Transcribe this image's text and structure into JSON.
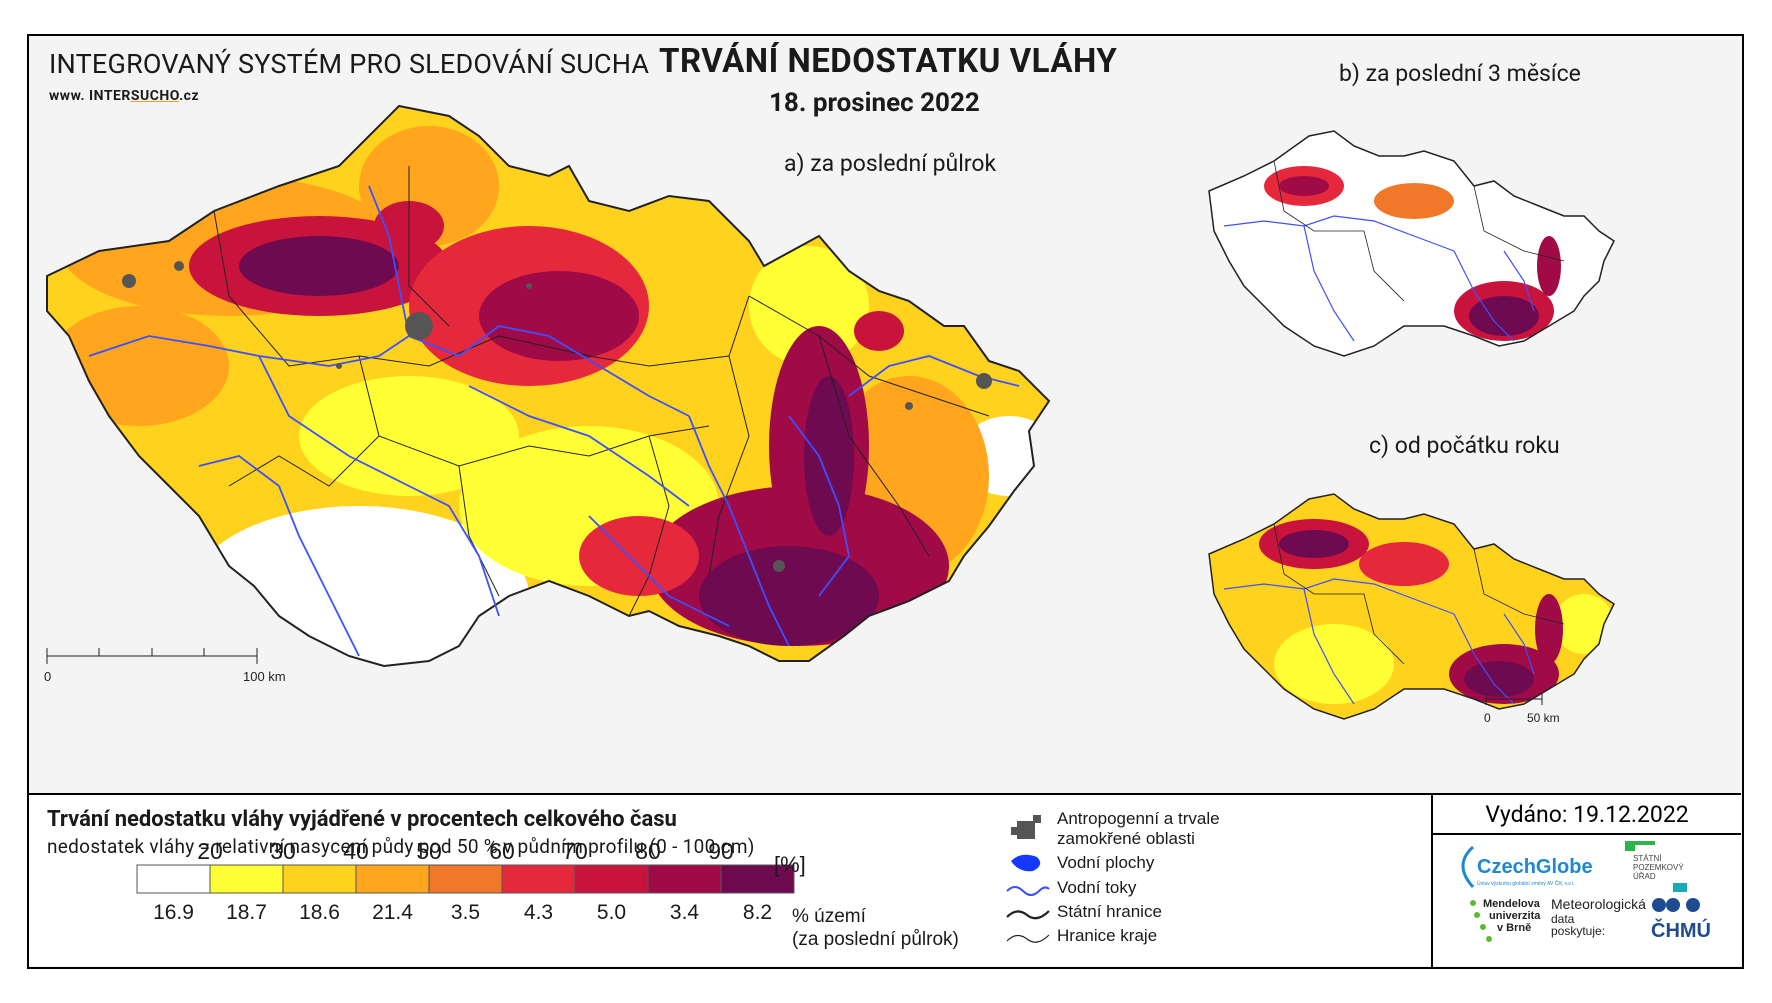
{
  "header": {
    "system_title": "INTEGROVANÝ SYSTÉM PRO SLEDOVÁNÍ SUCHA",
    "website_prefix": "www. ",
    "website_a": "INTER",
    "website_b": "SUCHO",
    "website_c": ".cz",
    "title": "TRVÁNÍ NEDOSTATKU VLÁHY",
    "date": "18. prosinec 2022"
  },
  "maps": {
    "a_label": "a) za poslední půlrok",
    "b_label": "b) za poslední 3 měsíce",
    "c_label": "c) od počátku roku",
    "scale_a": {
      "start": "0",
      "end": "100 km"
    },
    "scale_bc": {
      "start": "0",
      "end": "50 km"
    }
  },
  "legend": {
    "title": "Trvání nedostatku vláhy vyjádřené v procentech celkového času",
    "subtitle": "nedostatek vláhy = relativní nasycení půdy pod 50 % v půdním profilu (0 - 100 cm)",
    "unit": "[%]",
    "thresholds": [
      "20",
      "30",
      "40",
      "50",
      "60",
      "70",
      "80",
      "90"
    ],
    "colors": [
      "#ffffff",
      "#ffff33",
      "#ffd21e",
      "#ffa51e",
      "#f07828",
      "#e6283c",
      "#c8143c",
      "#a00a46",
      "#6e0a50"
    ],
    "shares": [
      "16.9",
      "18.7",
      "18.6",
      "21.4",
      "3.5",
      "4.3",
      "5.0",
      "3.4",
      "8.2"
    ],
    "shares_label": "% území",
    "shares_note": "(za poslední půlrok)"
  },
  "symbols": {
    "urban": "Antropogenní a trvale",
    "urban2": "zamokřené oblasti",
    "water_bodies": "Vodní plochy",
    "rivers": "Vodní toky",
    "state_border": "Státní hranice",
    "region_border": "Hranice kraje"
  },
  "issued": "Vydáno: 19.12.2022",
  "logos": {
    "czechglobe": "CzechGlobe",
    "czechglobe_sub": "Ústav výzkumu globální změny AV ČR, v.v.i.",
    "spu1": "STÁTNÍ",
    "spu2": "POZEMKOVÝ",
    "spu3": "ÚŘAD",
    "mendel1": "Mendelova",
    "mendel2": "univerzita",
    "mendel3": "v Brně",
    "meteo1": "Meteorologická",
    "meteo2": "data",
    "meteo3": "poskytuje:",
    "chmu": "ČHMÚ"
  }
}
